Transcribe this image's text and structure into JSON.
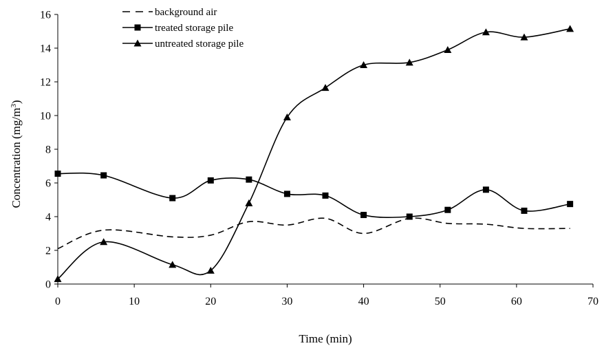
{
  "chart_data": {
    "type": "line",
    "title": "",
    "xlabel": "Time (min)",
    "ylabel_main": "Concentration (mg/m",
    "ylabel_sup": "3",
    "ylabel_end": ")",
    "xlim": [
      0,
      70
    ],
    "ylim": [
      0,
      16
    ],
    "xticks": [
      0,
      10,
      20,
      30,
      40,
      50,
      60,
      70
    ],
    "yticks": [
      0,
      2,
      4,
      6,
      8,
      10,
      12,
      14,
      16
    ],
    "grid": false,
    "legend_position": "top-left",
    "series": [
      {
        "name": "background air",
        "style": "dashed",
        "marker": "none",
        "color": "#000000",
        "x": [
          0,
          6,
          15,
          20,
          25,
          30,
          35,
          40,
          46,
          51,
          56,
          61,
          67
        ],
        "y": [
          2.1,
          3.2,
          2.8,
          2.9,
          3.7,
          3.5,
          3.9,
          3.0,
          3.9,
          3.6,
          3.55,
          3.3,
          3.3
        ]
      },
      {
        "name": "treated storage pile",
        "style": "solid",
        "marker": "square",
        "color": "#000000",
        "x": [
          0,
          6,
          15,
          20,
          25,
          30,
          35,
          40,
          46,
          51,
          56,
          61,
          67
        ],
        "y": [
          6.55,
          6.45,
          5.1,
          6.15,
          6.2,
          5.35,
          5.25,
          4.1,
          4.0,
          4.4,
          5.6,
          4.35,
          4.75
        ]
      },
      {
        "name": "untreated storage pile",
        "style": "solid",
        "marker": "triangle",
        "color": "#000000",
        "x": [
          0,
          6,
          15,
          20,
          25,
          30,
          35,
          40,
          46,
          51,
          56,
          61,
          67
        ],
        "y": [
          0.3,
          2.5,
          1.15,
          0.8,
          4.8,
          9.9,
          11.65,
          13.0,
          13.15,
          13.9,
          14.95,
          14.65,
          15.15
        ]
      }
    ]
  }
}
